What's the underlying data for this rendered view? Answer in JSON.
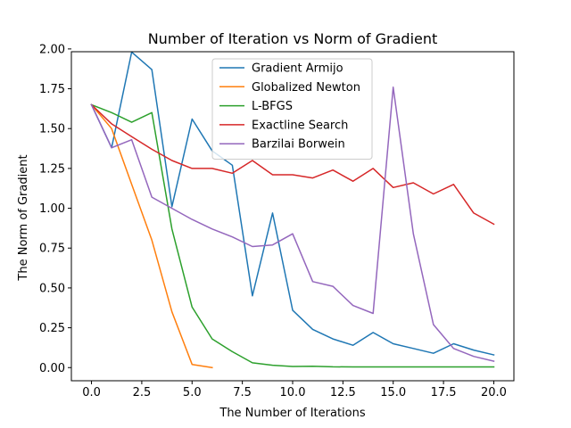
{
  "chart_data": {
    "type": "line",
    "title": "Number of Iteration vs Norm of Gradient",
    "xlabel": "The Number of Iterations",
    "ylabel": "The Norm of Gradient",
    "xlim": [
      -1.0,
      21.0
    ],
    "ylim": [
      -0.0825,
      1.9825
    ],
    "xticks": [
      0.0,
      2.5,
      5.0,
      7.5,
      10.0,
      12.5,
      15.0,
      17.5,
      20.0
    ],
    "xtick_labels": [
      "0.0",
      "2.5",
      "5.0",
      "7.5",
      "10.0",
      "12.5",
      "15.0",
      "17.5",
      "20.0"
    ],
    "yticks": [
      0.0,
      0.25,
      0.5,
      0.75,
      1.0,
      1.25,
      1.5,
      1.75,
      2.0
    ],
    "ytick_labels": [
      "0.00",
      "0.25",
      "0.50",
      "0.75",
      "1.00",
      "1.25",
      "1.50",
      "1.75",
      "2.00"
    ],
    "grid": false,
    "legend_position": "top-center",
    "series": [
      {
        "name": "Gradient Armijo",
        "color": "#1f77b4",
        "x": [
          0,
          1,
          2,
          3,
          4,
          5,
          6,
          7,
          8,
          9,
          10,
          11,
          12,
          13,
          14,
          15,
          16,
          17,
          18,
          19,
          20
        ],
        "y": [
          1.65,
          1.38,
          1.98,
          1.87,
          1.01,
          1.56,
          1.36,
          1.27,
          0.45,
          0.97,
          0.36,
          0.24,
          0.18,
          0.14,
          0.22,
          0.15,
          0.12,
          0.09,
          0.15,
          0.11,
          0.08
        ]
      },
      {
        "name": "Globalized Newton",
        "color": "#ff7f0e",
        "x": [
          0,
          1,
          2,
          3,
          4,
          5,
          6
        ],
        "y": [
          1.65,
          1.5,
          1.15,
          0.8,
          0.35,
          0.02,
          0.0
        ]
      },
      {
        "name": "L-BFGS",
        "color": "#2ca02c",
        "x": [
          0,
          1,
          2,
          3,
          4,
          5,
          6,
          7,
          8,
          9,
          10,
          11,
          12,
          13,
          14,
          15,
          16,
          17,
          18,
          19,
          20
        ],
        "y": [
          1.65,
          1.6,
          1.54,
          1.6,
          0.87,
          0.38,
          0.18,
          0.1,
          0.03,
          0.015,
          0.007,
          0.008,
          0.005,
          0.004,
          0.004,
          0.004,
          0.004,
          0.004,
          0.004,
          0.004,
          0.004
        ]
      },
      {
        "name": "Exactline Search",
        "color": "#d62728",
        "x": [
          0,
          1,
          2,
          3,
          4,
          5,
          6,
          7,
          8,
          9,
          10,
          11,
          12,
          13,
          14,
          15,
          16,
          17,
          18,
          19,
          20
        ],
        "y": [
          1.65,
          1.53,
          1.45,
          1.37,
          1.3,
          1.25,
          1.25,
          1.22,
          1.3,
          1.21,
          1.21,
          1.19,
          1.24,
          1.17,
          1.25,
          1.13,
          1.16,
          1.09,
          1.15,
          0.97,
          0.9
        ]
      },
      {
        "name": "Barzilai Borwein",
        "color": "#9467bd",
        "x": [
          0,
          1,
          2,
          3,
          4,
          5,
          6,
          7,
          8,
          9,
          10,
          11,
          12,
          13,
          14,
          15,
          16,
          17,
          18,
          19,
          20
        ],
        "y": [
          1.65,
          1.38,
          1.43,
          1.07,
          1.0,
          0.93,
          0.87,
          0.82,
          0.76,
          0.77,
          0.84,
          0.54,
          0.51,
          0.39,
          0.34,
          1.76,
          0.84,
          0.27,
          0.12,
          0.07,
          0.04
        ]
      }
    ]
  }
}
